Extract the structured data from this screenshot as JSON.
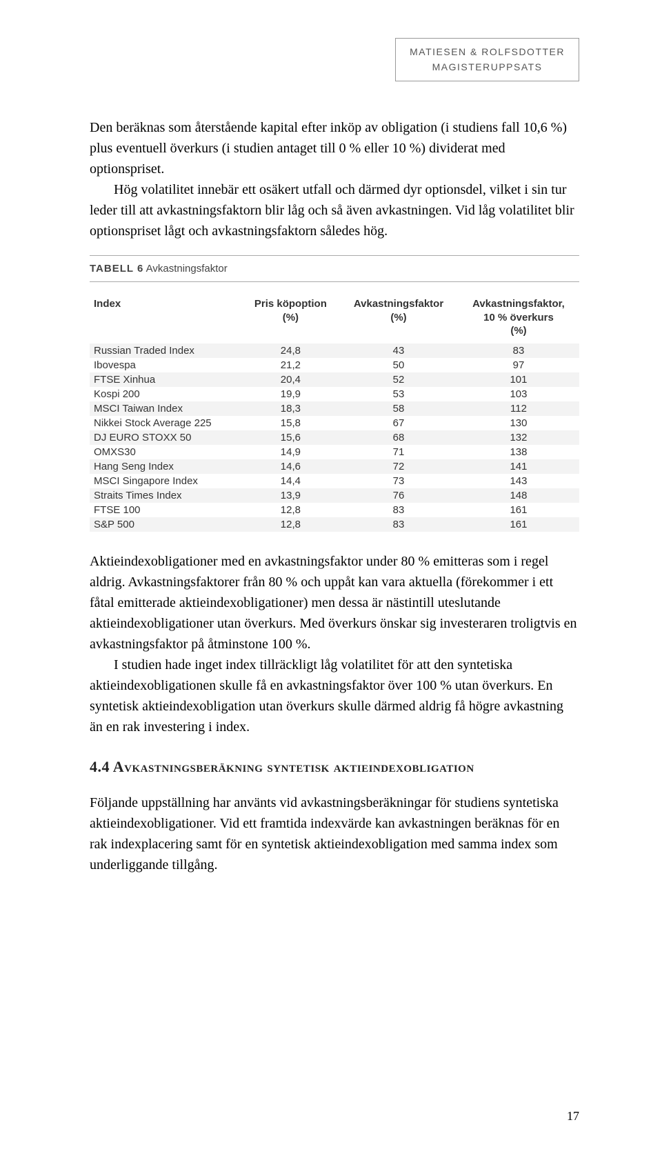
{
  "header": {
    "line1": "MATIESEN & ROLFSDOTTER",
    "line2": "MAGISTERUPPSATS"
  },
  "para1": "Den beräknas som återstående kapital efter inköp av obligation (i studiens fall 10,6 %) plus eventuell överkurs (i studien antaget till 0 % eller 10 %) dividerat med optionspriset.",
  "para2a": "Hög volatilitet innebär ett osäkert utfall och därmed dyr optionsdel, vilket i sin tur leder till att avkastningsfaktorn blir låg och så även avkastningen. Vid låg volatilitet blir optionspriset lågt och avkastningsfaktorn således hög.",
  "table": {
    "caption_label": "TABELL 6",
    "caption_text": "Avkastningsfaktor",
    "columns": [
      "Index",
      "Pris köpoption\n(%)",
      "Avkastningsfaktor\n(%)",
      "Avkastningsfaktor,\n10 % överkurs\n(%)"
    ],
    "rows": [
      [
        "Russian Traded Index",
        "24,8",
        "43",
        "83"
      ],
      [
        "Ibovespa",
        "21,2",
        "50",
        "97"
      ],
      [
        "FTSE Xinhua",
        "20,4",
        "52",
        "101"
      ],
      [
        "Kospi 200",
        "19,9",
        "53",
        "103"
      ],
      [
        "MSCI Taiwan Index",
        "18,3",
        "58",
        "112"
      ],
      [
        "Nikkei Stock Average 225",
        "15,8",
        "67",
        "130"
      ],
      [
        "DJ EURO STOXX 50",
        "15,6",
        "68",
        "132"
      ],
      [
        "OMXS30",
        "14,9",
        "71",
        "138"
      ],
      [
        "Hang Seng Index",
        "14,6",
        "72",
        "141"
      ],
      [
        "MSCI Singapore Index",
        "14,4",
        "73",
        "143"
      ],
      [
        "Straits Times Index",
        "13,9",
        "76",
        "148"
      ],
      [
        "FTSE 100",
        "12,8",
        "83",
        "161"
      ],
      [
        "S&P 500",
        "12,8",
        "83",
        "161"
      ]
    ]
  },
  "para3": "Aktieindexobligationer med en avkastningsfaktor under 80 % emitteras som i regel aldrig. Avkastningsfaktorer från 80 % och uppåt kan vara aktuella (förekommer i ett fåtal emitterade aktieindexobligationer) men dessa är nästintill uteslutande aktieindexobligationer utan överkurs. Med överkurs önskar sig investeraren troligtvis en avkastningsfaktor på åtminstone 100 %.",
  "para3b": "I studien hade inget index tillräckligt låg volatilitet för att den syntetiska aktieindexobligationen skulle få en avkastningsfaktor över 100 % utan överkurs. En syntetisk aktieindexobligation utan överkurs skulle därmed aldrig få högre avkastning än en rak investering i index.",
  "section": "4.4 Avkastningsberäkning syntetisk aktieindexobligation",
  "para4": "Följande uppställning har använts vid avkastningsberäkningar för studiens syntetiska aktieindexobligationer. Vid ett framtida indexvärde kan avkastningen beräknas för en rak indexplacering samt för en syntetisk aktieindexobligation med samma index som underliggande tillgång.",
  "page_number": "17"
}
